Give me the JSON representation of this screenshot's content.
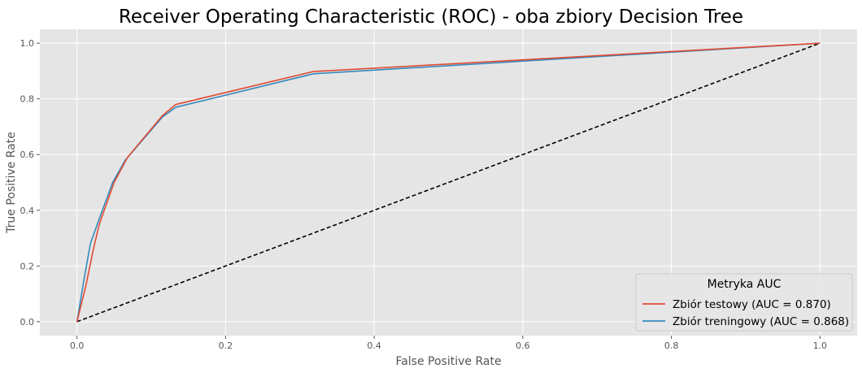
{
  "chart_data": {
    "type": "line",
    "title": "Receiver Operating Characteristic (ROC) - oba zbiory Decision Tree",
    "xlabel": "False Positive Rate",
    "ylabel": "True Positive Rate",
    "xlim": [
      -0.05,
      1.05
    ],
    "ylim": [
      -0.05,
      1.05
    ],
    "xticks": [
      "0.0",
      "0.2",
      "0.4",
      "0.6",
      "0.8",
      "1.0"
    ],
    "yticks": [
      "0.0",
      "0.2",
      "0.4",
      "0.6",
      "0.8",
      "1.0"
    ],
    "grid": true,
    "legend": {
      "title": "Metryka AUC",
      "placement": "lower-right"
    },
    "series": [
      {
        "name": "Zbiór testowy (AUC = 0.870)",
        "color": "#E24A33",
        "x": [
          0.0,
          0.012,
          0.022,
          0.03,
          0.05,
          0.068,
          0.115,
          0.133,
          0.318,
          1.0
        ],
        "y": [
          0.0,
          0.13,
          0.26,
          0.35,
          0.5,
          0.59,
          0.74,
          0.78,
          0.898,
          1.0
        ]
      },
      {
        "name": "Zbiór treningowy (AUC = 0.868)",
        "color": "#348ABD",
        "x": [
          0.0,
          0.01,
          0.018,
          0.03,
          0.048,
          0.065,
          0.115,
          0.133,
          0.318,
          1.0
        ],
        "y": [
          0.0,
          0.16,
          0.28,
          0.37,
          0.5,
          0.58,
          0.735,
          0.77,
          0.89,
          1.0
        ]
      },
      {
        "name": "",
        "color": "#000000",
        "dashed": true,
        "x": [
          0.0,
          1.0
        ],
        "y": [
          0.0,
          1.0
        ]
      }
    ]
  }
}
